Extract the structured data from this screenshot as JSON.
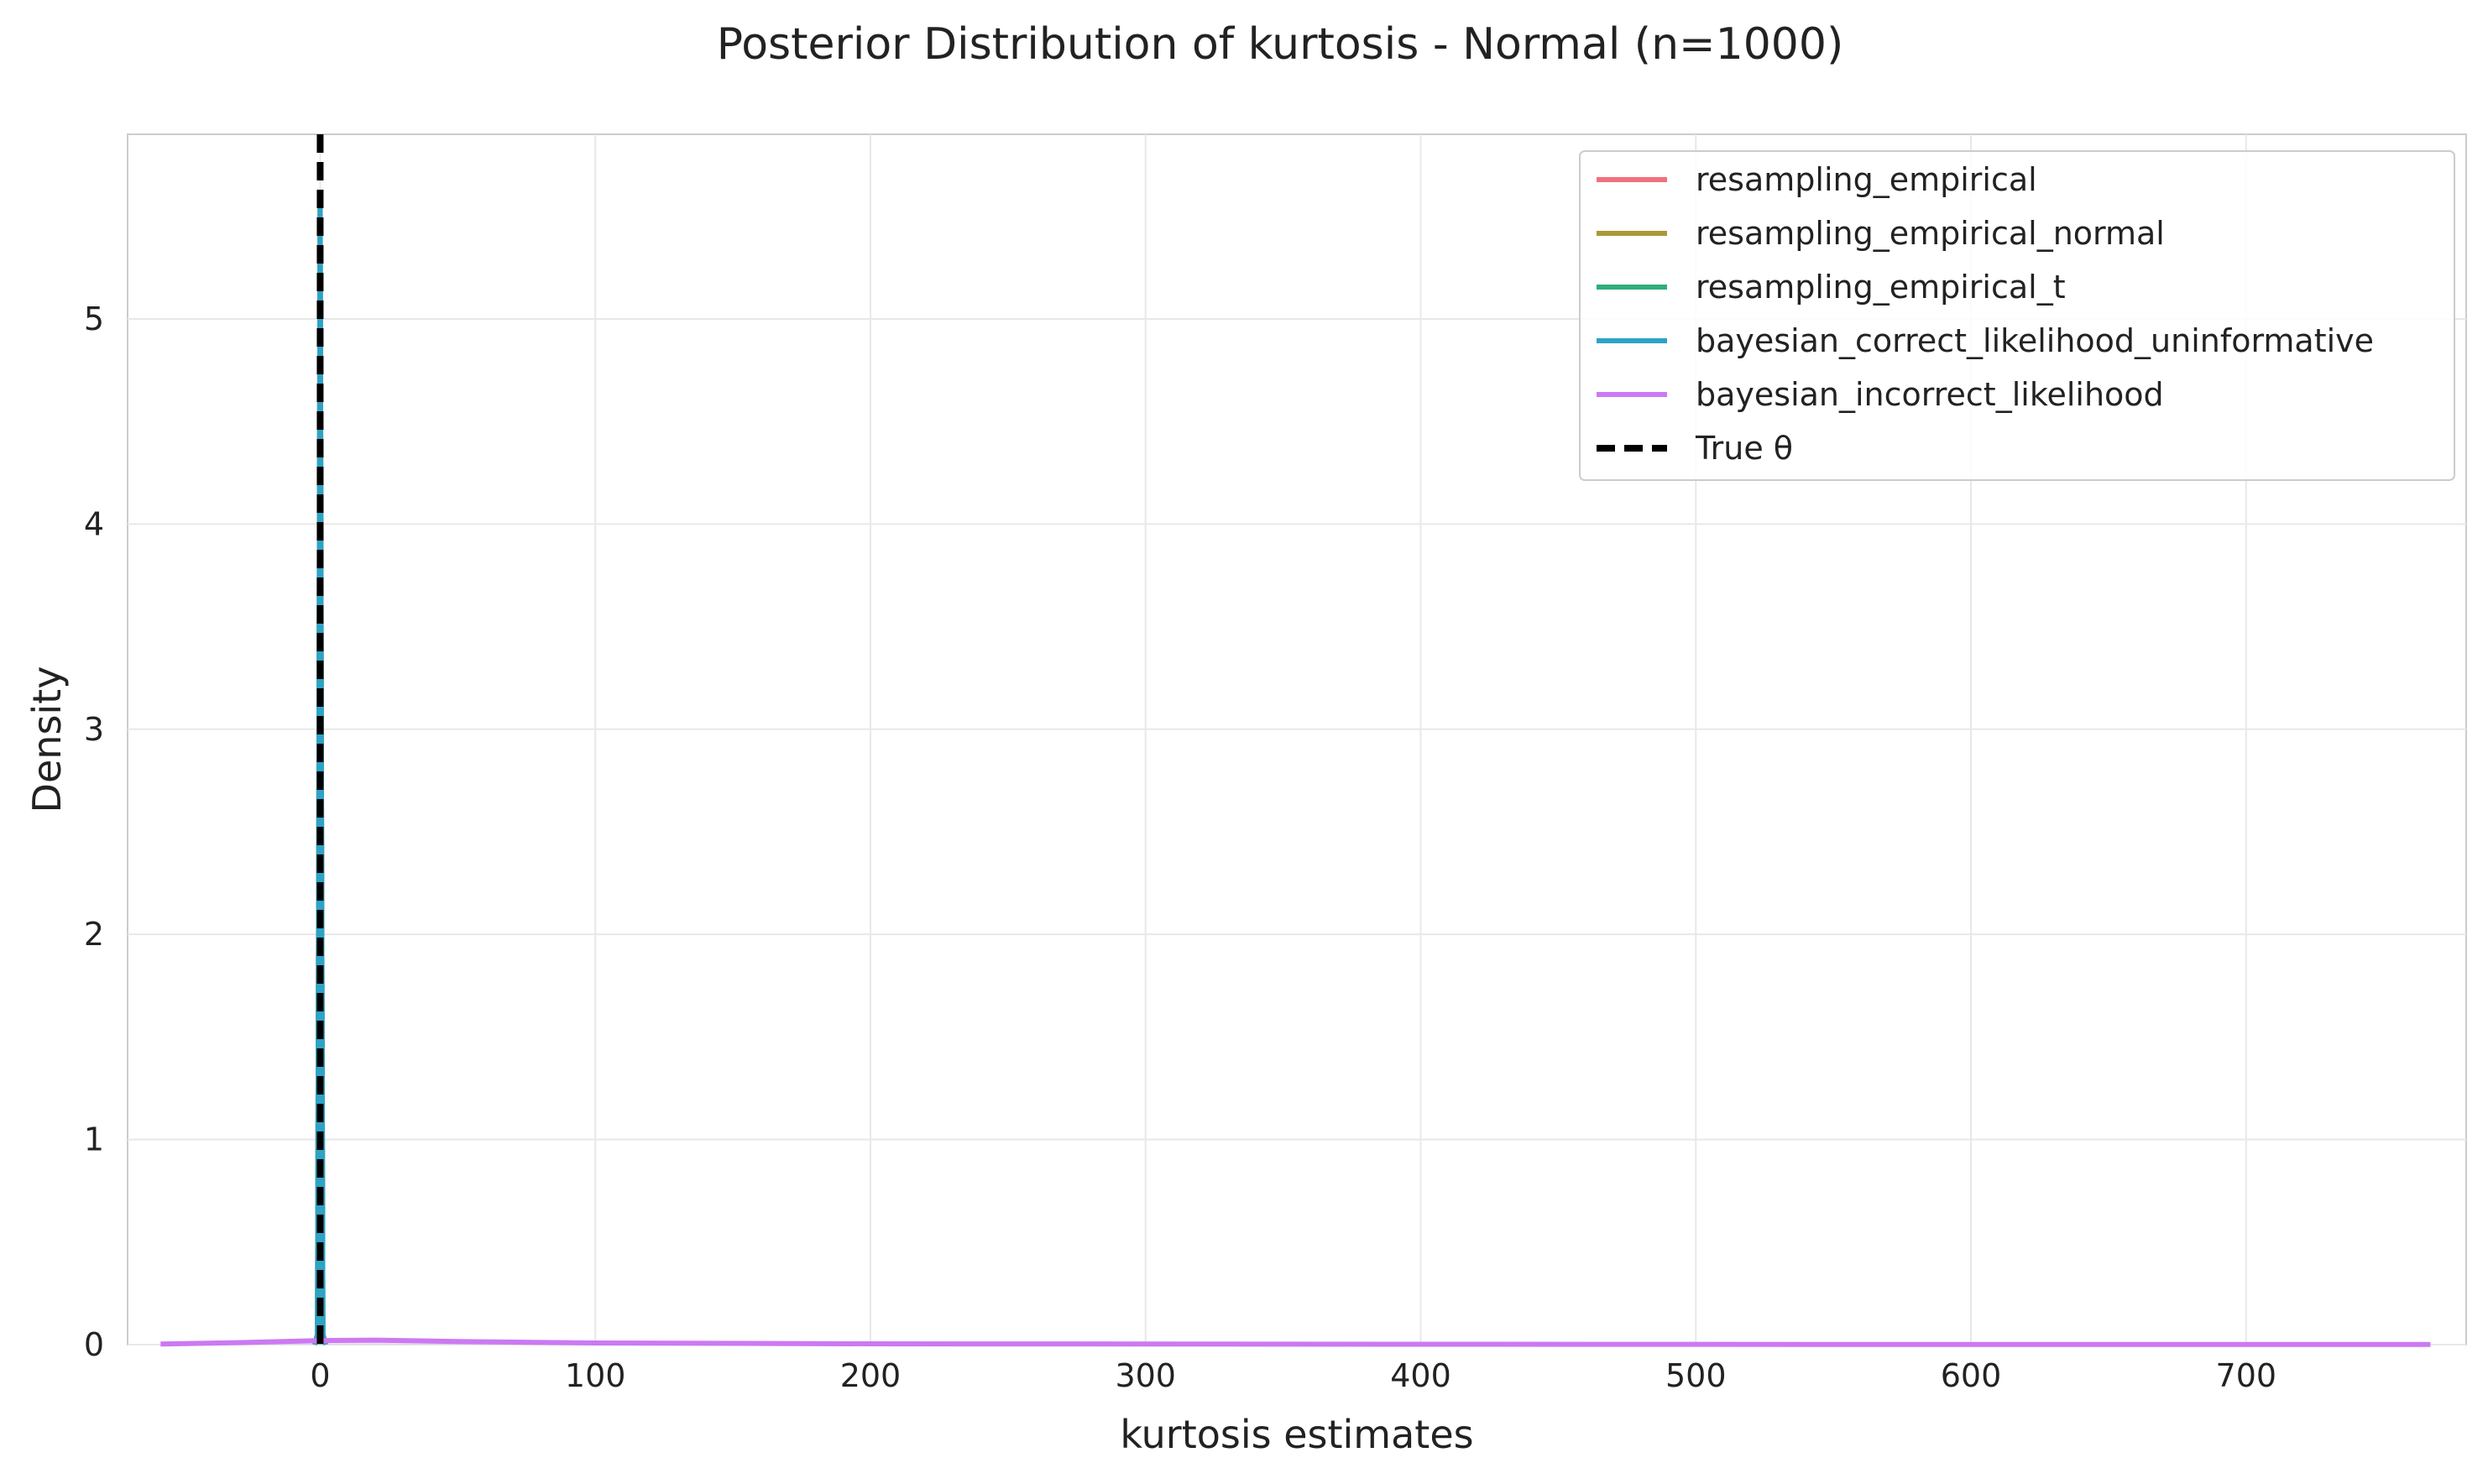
{
  "chart_data": {
    "type": "line",
    "title": "Posterior Distribution of kurtosis - Normal (n=1000)",
    "xlabel": "kurtosis estimates",
    "ylabel": "Density",
    "xlim": [
      -70,
      780
    ],
    "ylim": [
      0,
      5.9
    ],
    "xticks": [
      0,
      100,
      200,
      300,
      400,
      500,
      600,
      700
    ],
    "yticks": [
      0,
      1,
      2,
      3,
      4,
      5
    ],
    "grid": true,
    "legend_position": "top-right",
    "true_theta": 0,
    "series": [
      {
        "name": "resampling_empirical",
        "color": "#f0707f",
        "x": [
          -2,
          -1,
          -0.5,
          0,
          0.5,
          1,
          2
        ],
        "y": [
          0,
          0.05,
          2.5,
          5.6,
          2.5,
          0.05,
          0
        ]
      },
      {
        "name": "resampling_empirical_normal",
        "color": "#a89a35",
        "x": [
          -2,
          -1,
          -0.5,
          0,
          0.5,
          1,
          2
        ],
        "y": [
          0,
          0.05,
          2.5,
          5.6,
          2.5,
          0.05,
          0
        ]
      },
      {
        "name": "resampling_empirical_t",
        "color": "#2fae7c",
        "x": [
          -2,
          -1,
          -0.5,
          0,
          0.5,
          1,
          2
        ],
        "y": [
          0,
          0.05,
          2.5,
          5.6,
          2.5,
          0.05,
          0
        ]
      },
      {
        "name": "bayesian_correct_likelihood_uninformative",
        "color": "#2ea3c7",
        "x": [
          -2,
          -1,
          -0.5,
          0,
          0.5,
          1,
          2
        ],
        "y": [
          0,
          0.05,
          2.5,
          5.6,
          2.5,
          0.05,
          0
        ]
      },
      {
        "name": "bayesian_incorrect_likelihood",
        "color": "#cc79f2",
        "x": [
          -58,
          -30,
          0,
          20,
          50,
          100,
          200,
          400,
          600,
          767
        ],
        "y": [
          0.003,
          0.01,
          0.02,
          0.022,
          0.015,
          0.008,
          0.004,
          0.002,
          0.001,
          0.001
        ]
      }
    ],
    "true_line": {
      "name": "True θ",
      "color": "#000000"
    }
  }
}
